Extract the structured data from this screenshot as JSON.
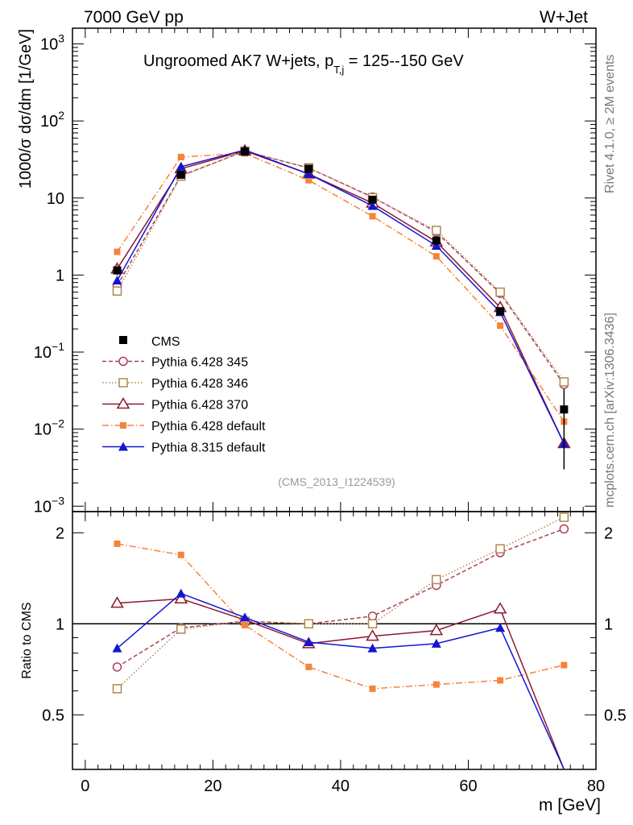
{
  "header": {
    "left": "7000 GeV pp",
    "right": "W+Jet"
  },
  "side_text": {
    "rivet": "Rivet 4.1.0, ≥ 2M events",
    "mcplots": "mcplots.cern.ch [arXiv:1306.3436]"
  },
  "chart_data": {
    "type": "line",
    "title_main": "Ungroomed AK7 W+jets, p",
    "title_sub": "T,j",
    "title_rest": " = 125--150 GeV",
    "analysis_id": "(CMS_2013_I1224539)",
    "xlabel": "m [GeV]",
    "ylabel": "1000/σ  dσ/dm [1/GeV]",
    "ratio_ylabel": "Ratio to CMS",
    "xlim": [
      -2,
      80
    ],
    "ylim_main": [
      0.00085,
      1600
    ],
    "ylim_ratio": [
      0.33,
      2.35
    ],
    "x_ticks": [
      "0",
      "20",
      "40",
      "60",
      "80"
    ],
    "x_tick_values": [
      0,
      20,
      40,
      60,
      80
    ],
    "y_ticks": [
      {
        "v": 1000,
        "base": "10",
        "exp": "3"
      },
      {
        "v": 100,
        "base": "10",
        "exp": "2"
      },
      {
        "v": 10,
        "base": "10",
        "exp": ""
      },
      {
        "v": 1,
        "base": "1",
        "exp": ""
      },
      {
        "v": 0.1,
        "base": "10",
        "exp": "−1"
      },
      {
        "v": 0.01,
        "base": "10",
        "exp": "−2"
      },
      {
        "v": 0.001,
        "base": "10",
        "exp": "−3"
      }
    ],
    "ratio_ticks": [
      {
        "v": 0.5,
        "label": "0.5"
      },
      {
        "v": 1,
        "label": "1"
      },
      {
        "v": 2,
        "label": "2"
      }
    ],
    "x": [
      5,
      15,
      25,
      35,
      45,
      55,
      65,
      75
    ],
    "data": {
      "name": "CMS",
      "values": [
        1.15,
        20,
        40,
        24,
        9.5,
        2.8,
        0.34,
        0.018
      ],
      "errors": [
        0.15,
        1.5,
        2,
        1.5,
        0.6,
        0.25,
        0.04,
        0.015
      ]
    },
    "series": [
      {
        "name": "Pythia 6.428 345",
        "color": "#a8415b",
        "dash": "5,3",
        "marker": "circle-open",
        "values": [
          0.73,
          19.5,
          40.5,
          24.5,
          10.3,
          3.6,
          0.58,
          0.038
        ],
        "ratio": [
          0.72,
          0.97,
          1.02,
          1.0,
          1.06,
          1.34,
          1.72,
          2.06
        ]
      },
      {
        "name": "Pythia 6.428 346",
        "color": "#b2854e",
        "dash": "1.5,2.5",
        "marker": "square-open",
        "values": [
          0.62,
          19.2,
          40.7,
          24.7,
          10.1,
          3.8,
          0.6,
          0.041
        ],
        "ratio": [
          0.61,
          0.96,
          1.02,
          1.0,
          1.0,
          1.4,
          1.77,
          2.25
        ]
      },
      {
        "name": "Pythia 6.428 370",
        "color": "#8a1a30",
        "dash": "",
        "marker": "triangle-open",
        "values": [
          1.2,
          24,
          41,
          20.5,
          8.6,
          2.7,
          0.38,
          0.0065
        ],
        "ratio": [
          1.17,
          1.21,
          1.03,
          0.86,
          0.91,
          0.95,
          1.12,
          0.3
        ]
      },
      {
        "name": "Pythia 6.428 default",
        "color": "#f5833b",
        "dash": "8,3,1.5,3",
        "marker": "square-filled",
        "values": [
          2.0,
          34,
          38,
          17,
          5.8,
          1.75,
          0.22,
          0.0125
        ],
        "ratio": [
          1.84,
          1.69,
          0.99,
          0.72,
          0.61,
          0.63,
          0.65,
          0.73
        ]
      },
      {
        "name": "Pythia 8.315 default",
        "color": "#1414d2",
        "dash": "",
        "marker": "triangle-filled",
        "values": [
          0.85,
          25.5,
          42,
          20.5,
          7.9,
          2.4,
          0.33,
          0.0065
        ],
        "ratio": [
          0.83,
          1.26,
          1.05,
          0.87,
          0.83,
          0.86,
          0.97,
          0.3
        ]
      }
    ]
  }
}
